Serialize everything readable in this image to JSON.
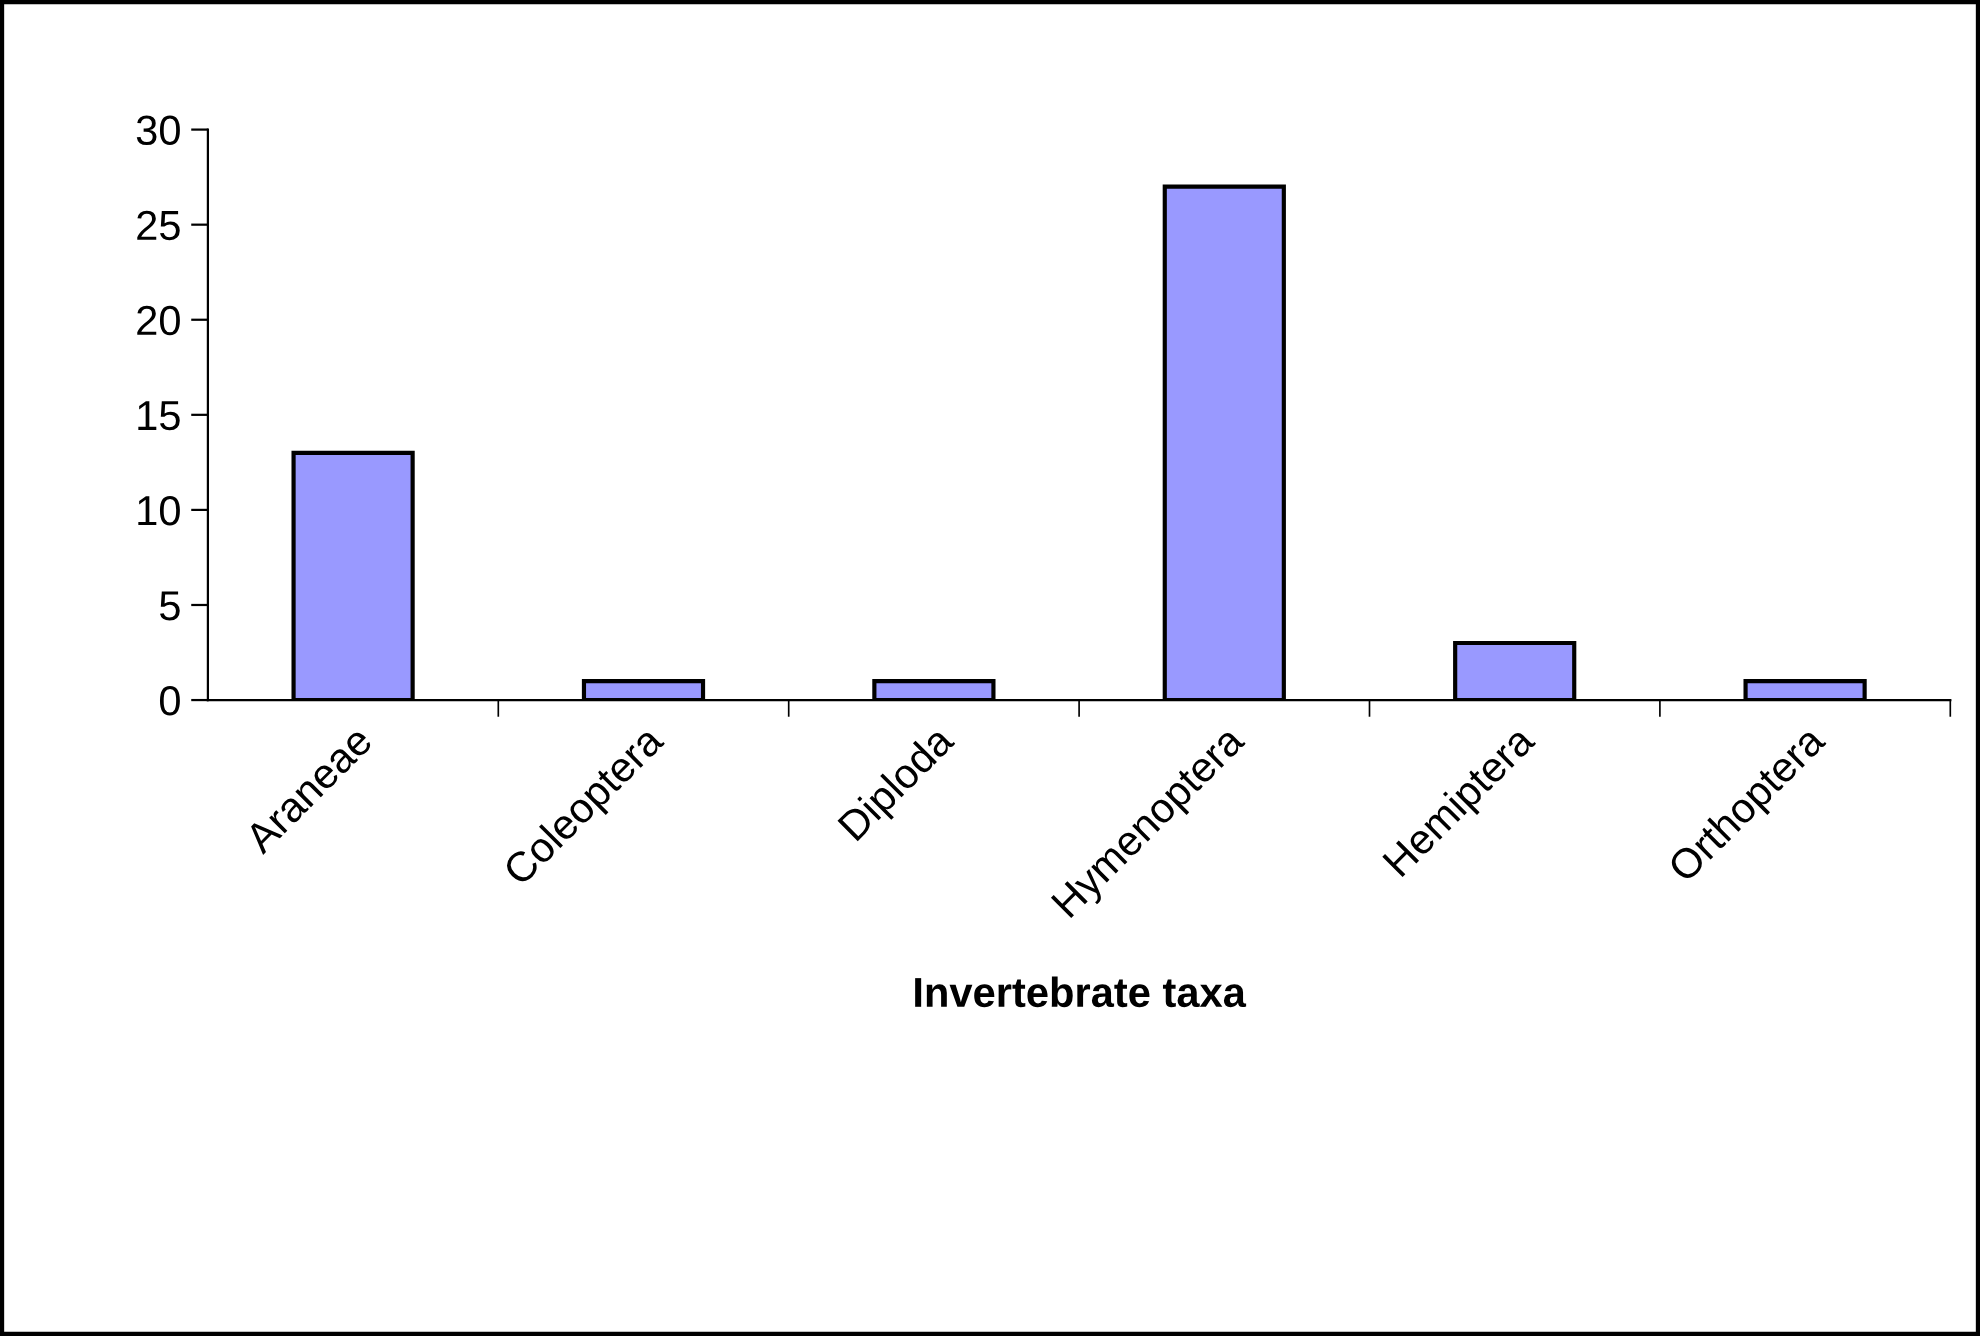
{
  "chart_data": {
    "type": "bar",
    "xlabel": "Invertebrate taxa",
    "categories": [
      "Araneae",
      "Coleoptera",
      "Diploda",
      "Hymenoptera",
      "Hemiptera",
      "Orthoptera"
    ],
    "values": [
      13,
      1,
      1,
      27,
      3,
      1
    ],
    "color": "#9999ff",
    "ylim": [
      0,
      30
    ],
    "yticks": [
      0,
      5,
      10,
      15,
      20,
      25,
      30
    ],
    "grid": false,
    "legend": false
  }
}
